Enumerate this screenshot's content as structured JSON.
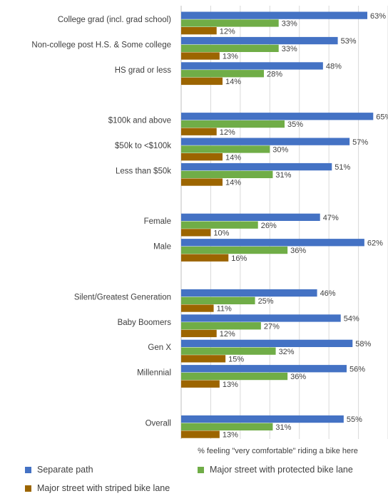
{
  "chart_data": {
    "type": "bar",
    "orientation": "horizontal",
    "xlabel": "% feeling  \"very comfortable\" riding a bike here",
    "xlim": [
      0,
      70
    ],
    "grid": true,
    "legend_position": "bottom",
    "groups": [
      {
        "categories": [
          "College grad (incl. grad school)",
          "Non-college post H.S. & Some college",
          "HS grad or less"
        ]
      },
      {
        "categories": [
          "$100k and above",
          "$50k to <$100k",
          "Less than $50k"
        ]
      },
      {
        "categories": [
          "Female",
          "Male"
        ]
      },
      {
        "categories": [
          "Silent/Greatest Generation",
          "Baby Boomers",
          "Gen X",
          "Millennial"
        ]
      },
      {
        "categories": [
          "Overall"
        ]
      }
    ],
    "categories": [
      "College grad (incl. grad school)",
      "Non-college post H.S. & Some college",
      "HS grad or less",
      "$100k and above",
      "$50k to <$100k",
      "Less than $50k",
      "Female",
      "Male",
      "Silent/Greatest Generation",
      "Baby Boomers",
      "Gen X",
      "Millennial",
      "Overall"
    ],
    "series": [
      {
        "name": "Separate path",
        "color": "#4472C4",
        "values": [
          63,
          53,
          48,
          65,
          57,
          51,
          47,
          62,
          46,
          54,
          58,
          56,
          55
        ],
        "labels": [
          "63%",
          "53%",
          "48%",
          "65%",
          "57%",
          "51%",
          "47%",
          "62%",
          "46%",
          "54%",
          "58%",
          "56%",
          "55%"
        ]
      },
      {
        "name": "Major street with protected bike lane",
        "color": "#70AD47",
        "values": [
          33,
          33,
          28,
          35,
          30,
          31,
          26,
          36,
          25,
          27,
          32,
          36,
          31
        ],
        "labels": [
          "33%",
          "33%",
          "28%",
          "35%",
          "30%",
          "31%",
          "26%",
          "36%",
          "25%",
          "27%",
          "32%",
          "36%",
          "31%"
        ]
      },
      {
        "name": "Major street with striped bike lane",
        "color": "#9C6500",
        "values": [
          12,
          13,
          14,
          12,
          14,
          14,
          10,
          16,
          11,
          12,
          15,
          13,
          13
        ],
        "labels": [
          "12%",
          "13%",
          "14%",
          "12%",
          "14%",
          "14%",
          "10%",
          "16%",
          "11%",
          "12%",
          "15%",
          "13%",
          "13%"
        ]
      }
    ],
    "grid_color": "#d9d9d9",
    "axis_color": "#bfbfbf"
  }
}
